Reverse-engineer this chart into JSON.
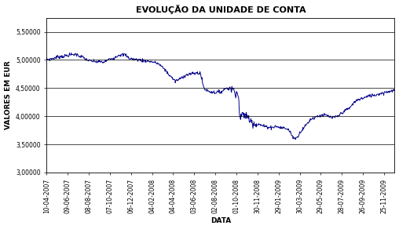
{
  "title": "EVOLUÇÃO DA UNIDADE DE CONTA",
  "xlabel": "DATA",
  "ylabel": "VALORES EM EUR",
  "line_color": "#00008B",
  "line_width": 0.7,
  "background_color": "#FFFFFF",
  "plot_bg_color": "#FFFFFF",
  "ylim": [
    3.0,
    5.75
  ],
  "yticks": [
    3.0,
    3.5,
    4.0,
    4.5,
    5.0,
    5.5
  ],
  "ytick_labels": [
    "3,00000",
    "3,50000",
    "4,00000",
    "4,50000",
    "5,00000",
    "5,50000"
  ],
  "xtick_labels": [
    "10-04-2007",
    "09-06-2007",
    "08-08-2007",
    "07-10-2007",
    "06-12-2007",
    "04-02-2008",
    "04-04-2008",
    "03-06-2008",
    "02-08-2008",
    "01-10-2008",
    "30-11-2008",
    "29-01-2009",
    "30-03-2009",
    "29-05-2009",
    "28-07-2009",
    "26-09-2009",
    "25-11-2009"
  ],
  "title_fontsize": 8,
  "axis_label_fontsize": 6.5,
  "tick_fontsize": 5.5,
  "key_points": [
    [
      "2007-04-10",
      5.01
    ],
    [
      "2007-04-20",
      5.01
    ],
    [
      "2007-05-10",
      5.05
    ],
    [
      "2007-06-01",
      5.07
    ],
    [
      "2007-06-15",
      5.09
    ],
    [
      "2007-07-01",
      5.1
    ],
    [
      "2007-07-20",
      5.05
    ],
    [
      "2007-08-10",
      4.98
    ],
    [
      "2007-09-01",
      4.97
    ],
    [
      "2007-09-20",
      4.96
    ],
    [
      "2007-10-05",
      5.01
    ],
    [
      "2007-10-20",
      5.04
    ],
    [
      "2007-11-01",
      5.09
    ],
    [
      "2007-11-20",
      5.09
    ],
    [
      "2007-12-01",
      5.03
    ],
    [
      "2007-12-15",
      5.01
    ],
    [
      "2008-01-10",
      4.99
    ],
    [
      "2008-02-01",
      4.97
    ],
    [
      "2008-02-20",
      4.94
    ],
    [
      "2008-03-10",
      4.84
    ],
    [
      "2008-03-20",
      4.76
    ],
    [
      "2008-04-01",
      4.68
    ],
    [
      "2008-04-10",
      4.62
    ],
    [
      "2008-04-20",
      4.65
    ],
    [
      "2008-05-01",
      4.7
    ],
    [
      "2008-05-15",
      4.74
    ],
    [
      "2008-06-01",
      4.76
    ],
    [
      "2008-06-20",
      4.77
    ],
    [
      "2008-07-01",
      4.49
    ],
    [
      "2008-07-15",
      4.44
    ],
    [
      "2008-08-01",
      4.42
    ],
    [
      "2008-08-20",
      4.44
    ],
    [
      "2008-09-01",
      4.5
    ],
    [
      "2008-09-15",
      4.49
    ],
    [
      "2008-10-01",
      4.44
    ],
    [
      "2008-10-07",
      4.33
    ],
    [
      "2008-10-10",
      4.02
    ],
    [
      "2008-10-15",
      3.99
    ],
    [
      "2008-10-20",
      4.02
    ],
    [
      "2008-10-27",
      4.03
    ],
    [
      "2008-11-05",
      3.96
    ],
    [
      "2008-11-15",
      3.9
    ],
    [
      "2008-11-25",
      3.87
    ],
    [
      "2008-12-10",
      3.84
    ],
    [
      "2008-12-20",
      3.82
    ],
    [
      "2009-01-10",
      3.8
    ],
    [
      "2009-01-20",
      3.82
    ],
    [
      "2009-02-01",
      3.8
    ],
    [
      "2009-02-15",
      3.79
    ],
    [
      "2009-03-01",
      3.75
    ],
    [
      "2009-03-10",
      3.63
    ],
    [
      "2009-03-20",
      3.6
    ],
    [
      "2009-04-01",
      3.72
    ],
    [
      "2009-04-15",
      3.83
    ],
    [
      "2009-05-01",
      3.95
    ],
    [
      "2009-05-20",
      4.0
    ],
    [
      "2009-06-01",
      4.02
    ],
    [
      "2009-06-15",
      4.01
    ],
    [
      "2009-07-01",
      3.97
    ],
    [
      "2009-07-15",
      3.99
    ],
    [
      "2009-08-01",
      4.08
    ],
    [
      "2009-08-20",
      4.15
    ],
    [
      "2009-09-01",
      4.25
    ],
    [
      "2009-09-15",
      4.3
    ],
    [
      "2009-10-01",
      4.33
    ],
    [
      "2009-10-20",
      4.37
    ],
    [
      "2009-11-01",
      4.38
    ],
    [
      "2009-11-20",
      4.41
    ],
    [
      "2009-12-01",
      4.43
    ],
    [
      "2009-12-25",
      4.46
    ]
  ]
}
